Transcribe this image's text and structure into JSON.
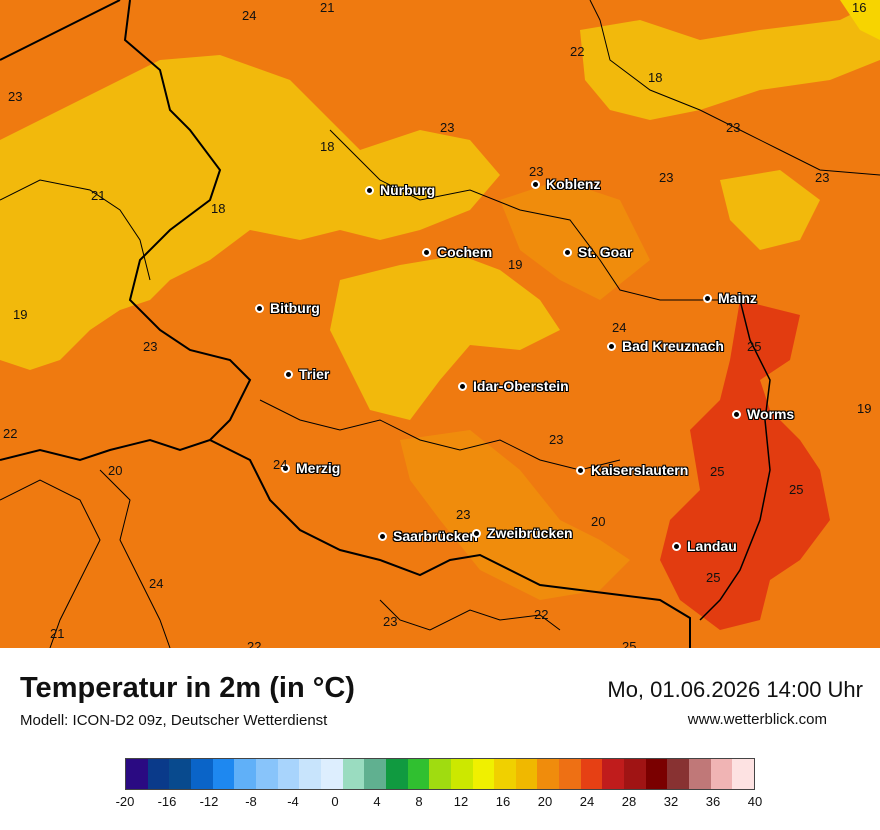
{
  "map": {
    "cities": [
      {
        "name": "Nürburg"
      },
      {
        "name": "Koblenz"
      },
      {
        "name": "Cochem"
      },
      {
        "name": "St. Goar"
      },
      {
        "name": "Bitburg"
      },
      {
        "name": "Mainz"
      },
      {
        "name": "Bad Kreuznach"
      },
      {
        "name": "Trier"
      },
      {
        "name": "Idar-Oberstein"
      },
      {
        "name": "Worms"
      },
      {
        "name": "Merzig"
      },
      {
        "name": "Kaiserslautern"
      },
      {
        "name": "Saarbrücken"
      },
      {
        "name": "Zweibrücken"
      },
      {
        "name": "Landau"
      }
    ],
    "temperature_labels": [
      "24",
      "21",
      "16",
      "22",
      "18",
      "23",
      "23",
      "23",
      "23",
      "23",
      "18",
      "21",
      "18",
      "19",
      "23",
      "24",
      "19",
      "25",
      "23",
      "19",
      "22",
      "23",
      "24",
      "20",
      "25",
      "25",
      "23",
      "20",
      "24",
      "25",
      "22",
      "23",
      "21",
      "22",
      "25"
    ]
  },
  "footer": {
    "title": "Temperatur in 2m (in °C)",
    "model": "Modell: ICON-D2 09z, Deutscher Wetterdienst",
    "datetime": "Mo, 01.06.2026 14:00 Uhr",
    "site": "www.wetterblick.com"
  },
  "legend": {
    "colors": [
      "#2a0a82",
      "#0a3a8a",
      "#084a8e",
      "#0a64c8",
      "#1e88f0",
      "#60b0f8",
      "#88c4fa",
      "#a8d4fc",
      "#c8e4fc",
      "#ddeefe",
      "#9adcc0",
      "#60b090",
      "#109a40",
      "#30c030",
      "#a0dc10",
      "#cce800",
      "#f0f000",
      "#f0d000",
      "#f0b800",
      "#f08c0c",
      "#ee7014",
      "#e64014",
      "#c01c1c",
      "#a01414",
      "#7a0000",
      "#883232",
      "#c07878",
      "#f0b4b4",
      "#fde2e2"
    ],
    "ticks": [
      "-20",
      "-16",
      "-12",
      "-8",
      "-4",
      "0",
      "4",
      "8",
      "12",
      "16",
      "20",
      "24",
      "28",
      "32",
      "36",
      "40"
    ]
  }
}
